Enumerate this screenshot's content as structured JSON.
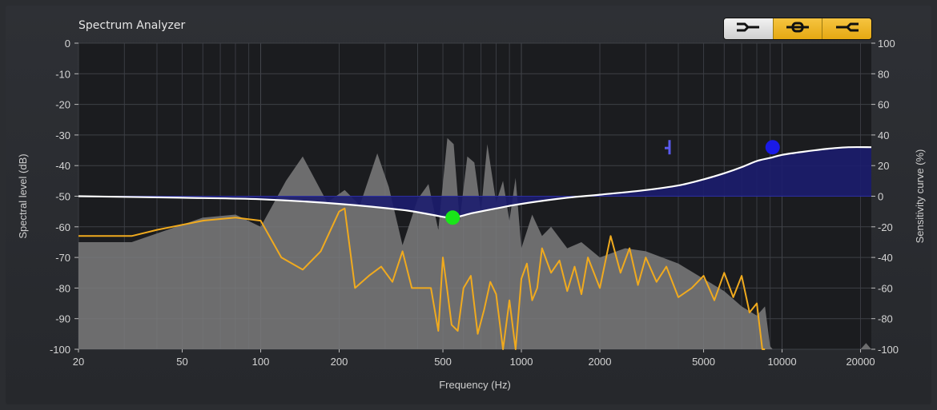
{
  "window": {
    "title": "Spectrum Analyzer"
  },
  "mode_buttons": [
    {
      "name": "mode-button-1",
      "icon": "curve-mode-right-icon",
      "active": true
    },
    {
      "name": "mode-button-2",
      "icon": "curve-mode-center-icon",
      "active": false
    },
    {
      "name": "mode-button-3",
      "icon": "curve-mode-left-icon",
      "active": false
    }
  ],
  "colors": {
    "plot_bg": "#1b1c1f",
    "grid": "#3a3c42",
    "peak_fill": "#7b7b7d",
    "current_line": "#f0aa1e",
    "curve": "#ffffff",
    "curve_fill": "#1c1d6e",
    "green_handle": "#19e619",
    "blue_handle": "#1a1ae6",
    "marker": "#5a5aee"
  },
  "chart_data": {
    "type": "line",
    "title": "Spectrum Analyzer",
    "xlabel": "Frequency (Hz)",
    "ylabel": "Spectral level (dB)",
    "y2label": "Sensitivity curve (%)",
    "xscale": "log",
    "xlim": [
      20,
      22000
    ],
    "ylim": [
      -100,
      0
    ],
    "y2lim": [
      -100,
      100
    ],
    "grid": true,
    "x_ticks": [
      20,
      50,
      100,
      200,
      500,
      1000,
      2000,
      5000,
      10000,
      20000
    ],
    "x_tick_labels": [
      "20",
      "50",
      "100",
      "200",
      "500",
      "1000",
      "2000",
      "5000",
      "10000",
      "20000"
    ],
    "y_ticks": [
      0,
      -10,
      -20,
      -30,
      -40,
      -50,
      -60,
      -70,
      -80,
      -90,
      -100
    ],
    "y_tick_labels": [
      "0",
      "-10",
      "-20",
      "-30",
      "-40",
      "-50",
      "-60",
      "-70",
      "-80",
      "-90",
      "-100"
    ],
    "y2_ticks": [
      100,
      80,
      60,
      40,
      20,
      0,
      -20,
      -40,
      -60,
      -80,
      -100
    ],
    "y2_tick_labels": [
      "100",
      "80",
      "60",
      "40",
      "20",
      "0",
      "-20",
      "-40",
      "-60",
      "-80",
      "-100"
    ],
    "series": [
      {
        "kind": "area",
        "x": [
          20,
          32,
          60,
          80,
          100,
          125,
          145,
          180,
          210,
          240,
          280,
          310,
          350,
          400,
          440,
          480,
          520,
          550,
          580,
          620,
          660,
          700,
          740,
          800,
          850,
          900,
          950,
          1000,
          1100,
          1200,
          1300,
          1500,
          1700,
          2000,
          2500,
          3000,
          4000,
          5000,
          6000,
          7000,
          8000,
          8600,
          9000,
          9200,
          20000,
          21000,
          22000
        ],
        "y": [
          -65,
          -65,
          -57,
          -56,
          -60,
          -45,
          -37,
          -52,
          -48,
          -53,
          -36,
          -47,
          -66,
          -51,
          -46,
          -61,
          -31,
          -33,
          -58,
          -37,
          -39,
          -55,
          -33,
          -52,
          -45,
          -58,
          -44,
          -67,
          -56,
          -63,
          -60,
          -67,
          -65,
          -70,
          -67,
          -68,
          -72,
          -77,
          -81,
          -86,
          -89,
          -86,
          -99,
          -100,
          -100,
          -98,
          -100
        ]
      },
      {
        "kind": "line",
        "x": [
          20,
          32,
          40,
          60,
          80,
          100,
          120,
          145,
          170,
          200,
          210,
          230,
          260,
          290,
          320,
          350,
          380,
          420,
          450,
          480,
          500,
          520,
          540,
          570,
          600,
          640,
          680,
          720,
          760,
          800,
          850,
          900,
          950,
          1000,
          1050,
          1100,
          1150,
          1200,
          1300,
          1400,
          1500,
          1600,
          1700,
          1800,
          2000,
          2200,
          2400,
          2600,
          2800,
          3000,
          3300,
          3600,
          4000,
          4500,
          5000,
          5500,
          6000,
          6500,
          7000,
          7500,
          8000,
          8400,
          8600
        ],
        "y": [
          -63,
          -63,
          -61,
          -58,
          -57,
          -58,
          -70,
          -74,
          -68,
          -55,
          -54,
          -80,
          -76,
          -73,
          -78,
          -68,
          -80,
          -80,
          -80,
          -94,
          -70,
          -81,
          -92,
          -94,
          -80,
          -76,
          -95,
          -87,
          -78,
          -82,
          -100,
          -84,
          -100,
          -77,
          -72,
          -84,
          -80,
          -67,
          -75,
          -71,
          -81,
          -73,
          -82,
          -70,
          -80,
          -63,
          -75,
          -67,
          -79,
          -70,
          -78,
          -73,
          -83,
          -80,
          -76,
          -84,
          -75,
          -83,
          -76,
          -88,
          -85,
          -100,
          -100
        ]
      },
      {
        "kind": "sensitivity_curve",
        "x": [
          20,
          50,
          100,
          200,
          350,
          450,
          540,
          650,
          800,
          1000,
          1500,
          2000,
          3000,
          4000,
          5000,
          6000,
          7000,
          8000,
          9000,
          10000,
          12000,
          15000,
          18000,
          22000
        ],
        "y2": [
          0,
          -1,
          -2,
          -5,
          -9,
          -12,
          -14,
          -11,
          -8,
          -5,
          -1,
          1,
          4,
          7,
          11,
          15,
          19,
          23,
          25,
          27,
          29,
          31,
          32,
          32
        ]
      }
    ],
    "handles": [
      {
        "name": "green-handle",
        "x": 545,
        "y2": -14,
        "color": "#19e619"
      },
      {
        "name": "blue-handle",
        "x": 9200,
        "y2": 32,
        "color": "#1a1ae6"
      }
    ],
    "marker": {
      "x": 3700,
      "y2": 32
    }
  }
}
